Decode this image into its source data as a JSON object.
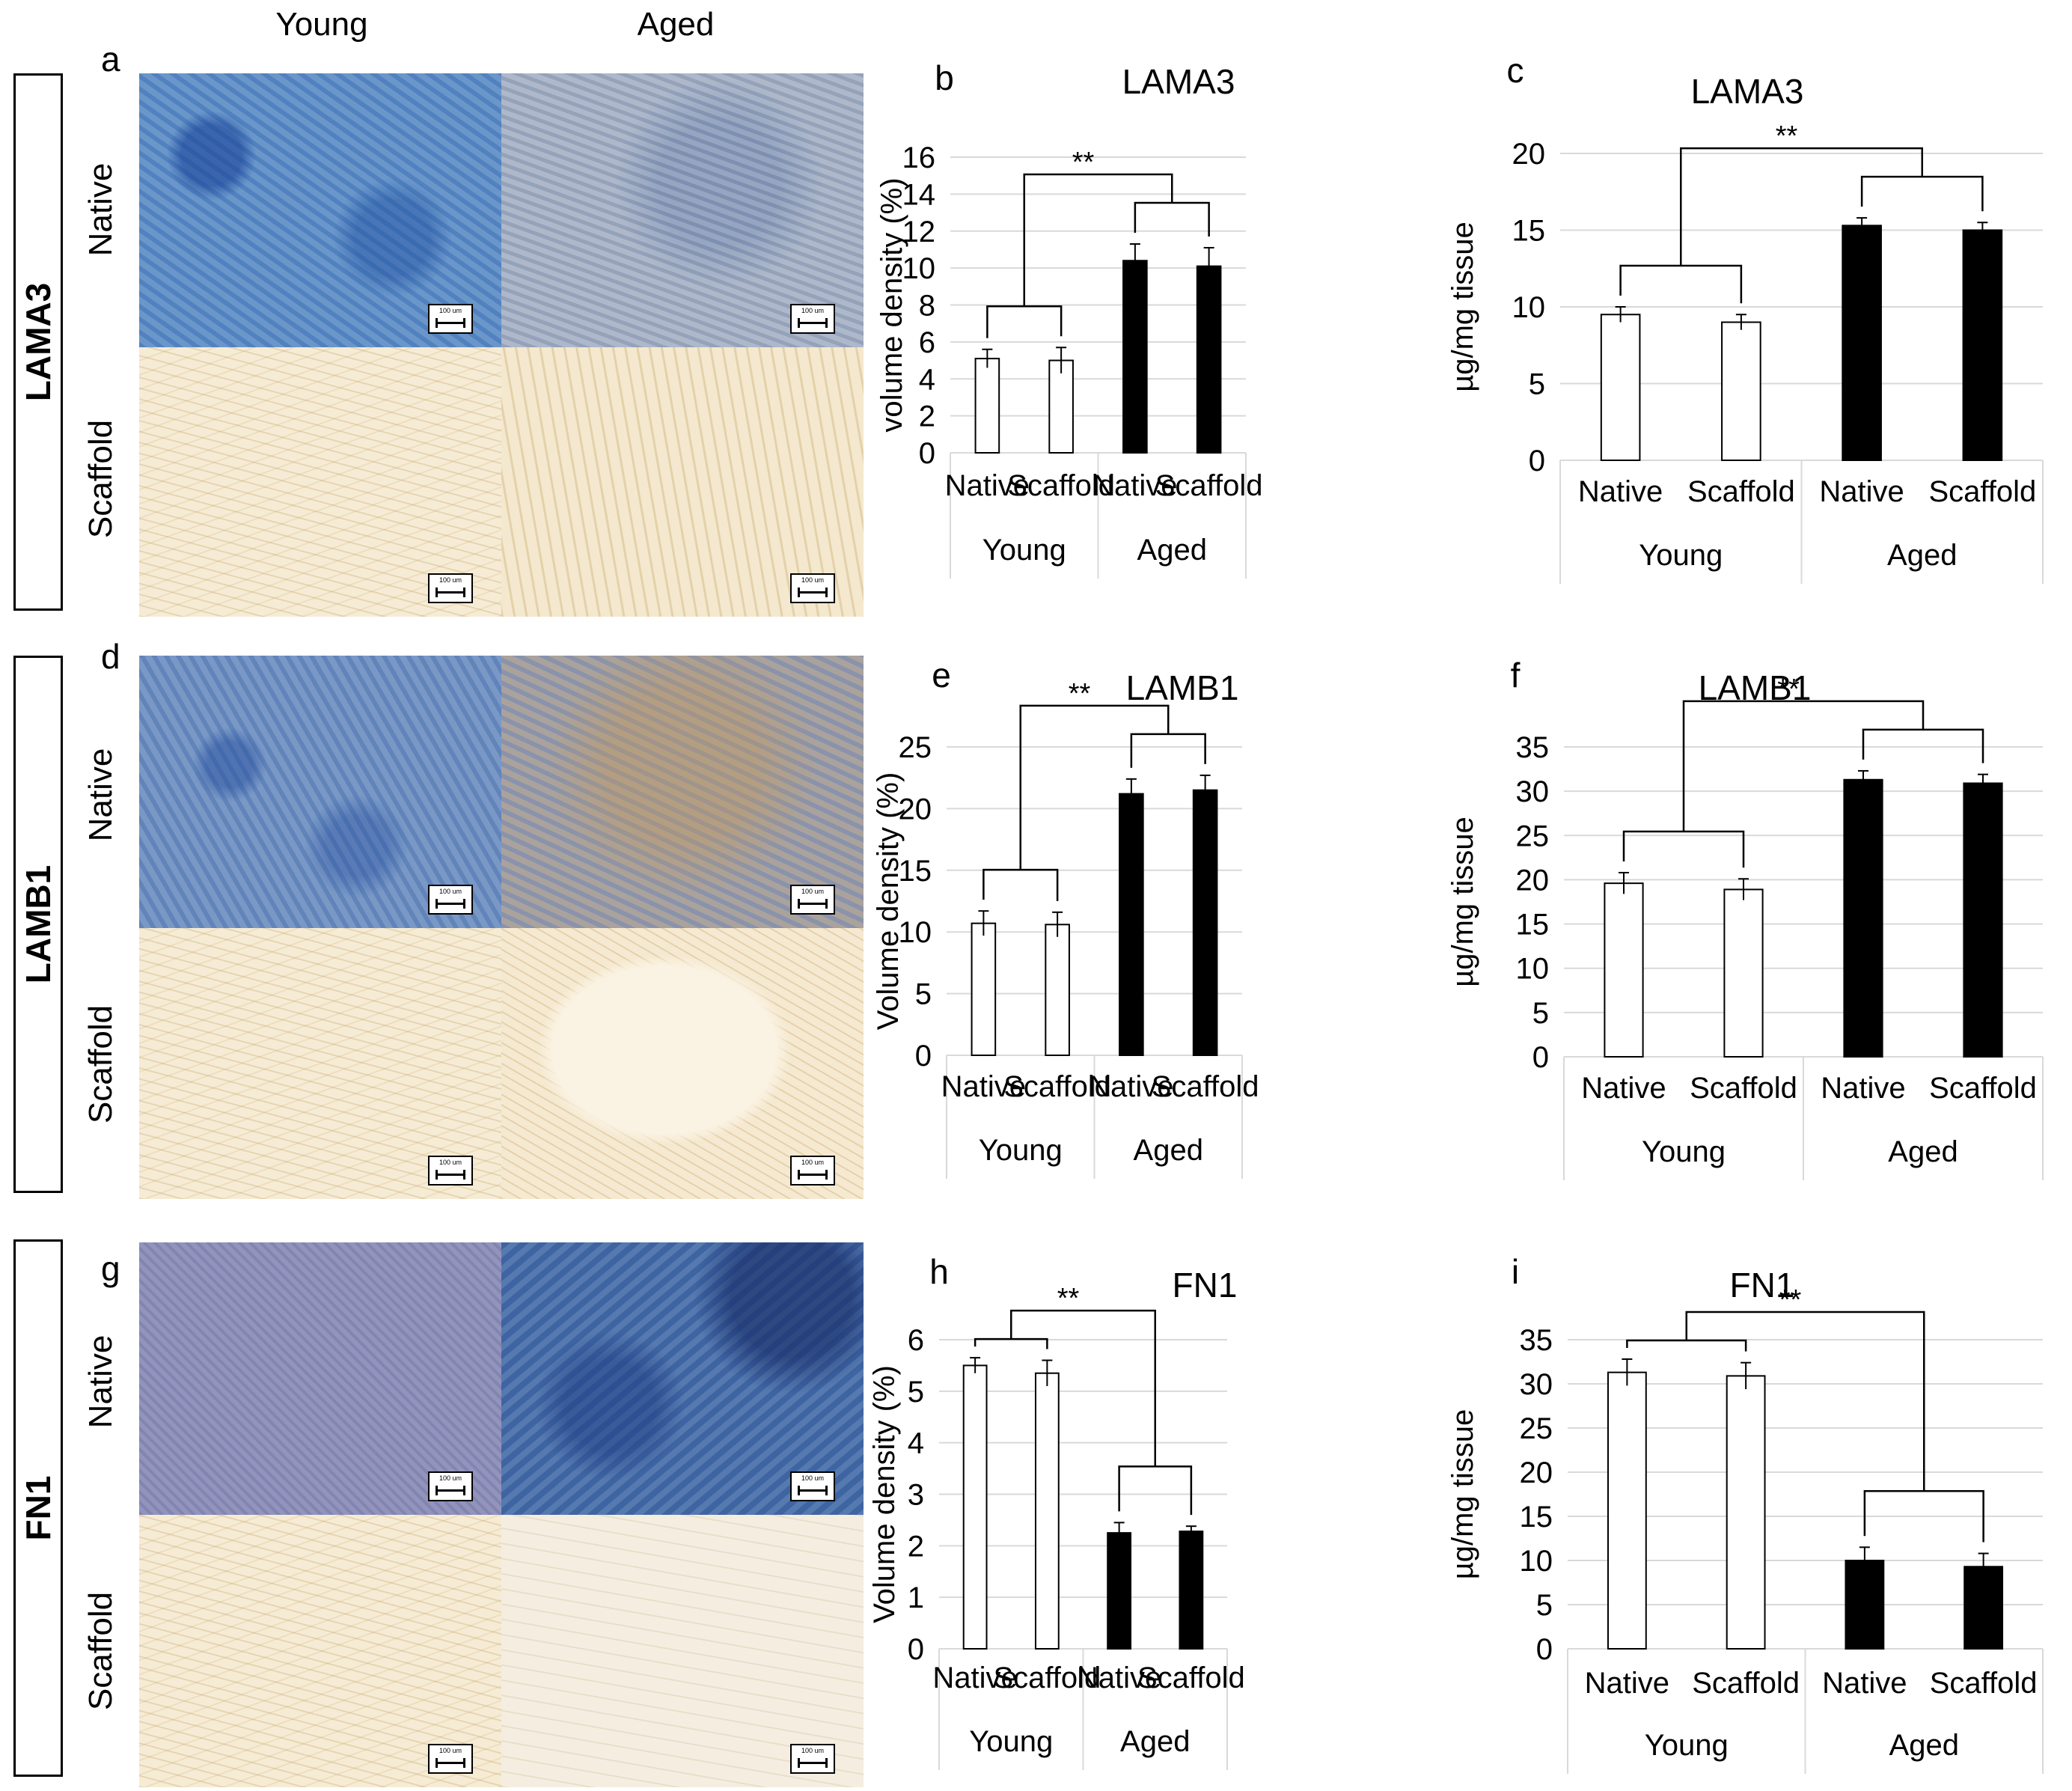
{
  "columns": [
    "Young",
    "Aged"
  ],
  "rows": [
    {
      "label": "LAMA3",
      "panel": "a"
    },
    {
      "label": "LAMB1",
      "panel": "d"
    },
    {
      "label": "FN1",
      "panel": "g"
    }
  ],
  "sublabels": [
    "Native",
    "Scaffold"
  ],
  "scale_bar_text": "100 um",
  "colors": {
    "young_bar": "#ffffff",
    "aged_bar": "#000000"
  },
  "chart_data": [
    {
      "panel": "b",
      "type": "bar",
      "title": "LAMA3",
      "ylabel": "volume density (%)",
      "ylim": [
        0,
        16
      ],
      "yticks": [
        0,
        2,
        4,
        6,
        8,
        10,
        12,
        14,
        16
      ],
      "categories": [
        "Native",
        "Scaffold",
        "Native",
        "Scaffold"
      ],
      "groups": [
        "Young",
        "Aged"
      ],
      "values": [
        5.1,
        5.0,
        10.4,
        10.1
      ],
      "errors": [
        0.5,
        0.7,
        0.9,
        1.0
      ],
      "significance": "**"
    },
    {
      "panel": "c",
      "type": "bar",
      "title": "LAMA3",
      "ylabel": "µg/mg tissue",
      "ylim": [
        0,
        20
      ],
      "yticks": [
        0,
        5,
        10,
        15,
        20
      ],
      "categories": [
        "Native",
        "Scaffold",
        "Native",
        "Scaffold"
      ],
      "groups": [
        "Young",
        "Aged"
      ],
      "values": [
        9.5,
        9.0,
        15.3,
        15.0
      ],
      "errors": [
        0.5,
        0.5,
        0.5,
        0.5
      ],
      "significance": "**"
    },
    {
      "panel": "e",
      "type": "bar",
      "title": "LAMB1",
      "ylabel": "Volume density (%)",
      "ylim": [
        0,
        25
      ],
      "yticks": [
        0,
        5,
        10,
        15,
        20,
        25
      ],
      "categories": [
        "Native",
        "Scaffold",
        "Native",
        "Scaffold"
      ],
      "groups": [
        "Young",
        "Aged"
      ],
      "values": [
        10.7,
        10.6,
        21.2,
        21.5
      ],
      "errors": [
        1.0,
        1.0,
        1.2,
        1.2
      ],
      "significance": "**"
    },
    {
      "panel": "f",
      "type": "bar",
      "title": "LAMB1",
      "ylabel": "µg/mg tissue",
      "ylim": [
        0,
        35
      ],
      "yticks": [
        0,
        5,
        10,
        15,
        20,
        25,
        30,
        35
      ],
      "categories": [
        "Native",
        "Scaffold",
        "Native",
        "Scaffold"
      ],
      "groups": [
        "Young",
        "Aged"
      ],
      "values": [
        19.6,
        18.9,
        31.3,
        30.9
      ],
      "errors": [
        1.2,
        1.2,
        1.0,
        1.0
      ],
      "significance": "**"
    },
    {
      "panel": "h",
      "type": "bar",
      "title": "FN1",
      "ylabel": "Volume density (%)",
      "ylim": [
        0,
        6
      ],
      "yticks": [
        0,
        1,
        2,
        3,
        4,
        5,
        6
      ],
      "categories": [
        "Native",
        "Scaffold",
        "Native",
        "Scaffold"
      ],
      "groups": [
        "Young",
        "Aged"
      ],
      "values": [
        5.5,
        5.35,
        2.25,
        2.28
      ],
      "errors": [
        0.15,
        0.25,
        0.2,
        0.1
      ],
      "significance": "**"
    },
    {
      "panel": "i",
      "type": "bar",
      "title": "FN1",
      "ylabel": "µg/mg tissue",
      "ylim": [
        0,
        35
      ],
      "yticks": [
        0,
        5,
        10,
        15,
        20,
        25,
        30,
        35
      ],
      "categories": [
        "Native",
        "Scaffold",
        "Native",
        "Scaffold"
      ],
      "groups": [
        "Young",
        "Aged"
      ],
      "values": [
        31.3,
        30.9,
        10.0,
        9.3
      ],
      "errors": [
        1.5,
        1.5,
        1.5,
        1.5
      ],
      "significance": "**"
    }
  ]
}
